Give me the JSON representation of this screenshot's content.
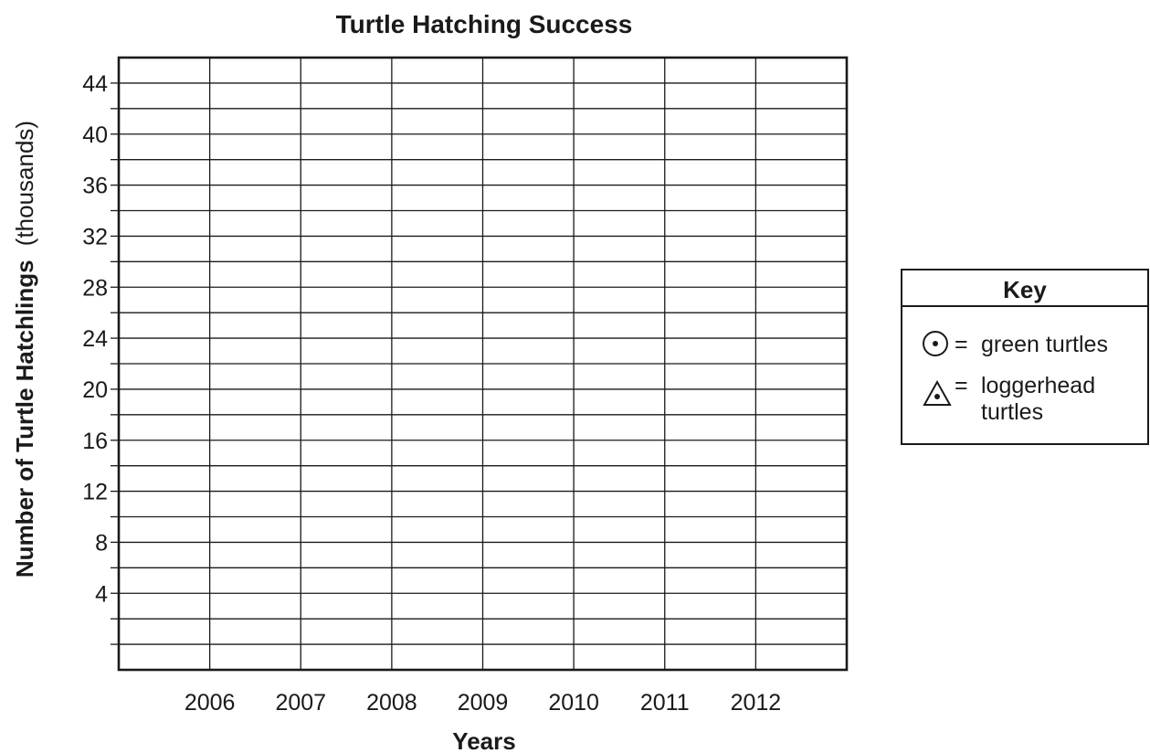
{
  "chart_data": {
    "type": "scatter",
    "title": "Turtle Hatching Success",
    "xlabel": "Years",
    "ylabel": "Number of Turtle Hatchlings",
    "ylabel_unit": "(thousands)",
    "x_categories": [
      "2006",
      "2007",
      "2008",
      "2009",
      "2010",
      "2011",
      "2012"
    ],
    "x_range": [
      2005,
      2013
    ],
    "ylim": [
      -2,
      46
    ],
    "y_grid_step": 2,
    "y_tick_values": [
      4,
      8,
      12,
      16,
      20,
      24,
      28,
      32,
      36,
      40,
      44
    ],
    "y_tick_labels": [
      "4",
      "8",
      "12",
      "16",
      "20",
      "24",
      "28",
      "32",
      "36",
      "40",
      "44"
    ],
    "grid": true,
    "legend_position": "right",
    "series": [
      {
        "name": "green turtles",
        "marker": "circle-dot",
        "values": []
      },
      {
        "name": "loggerhead turtles",
        "marker": "triangle-dot",
        "values": []
      }
    ]
  },
  "key": {
    "title": "Key",
    "entries": [
      {
        "symbol": "=",
        "label": "green turtles",
        "icon": "circle-dot-icon"
      },
      {
        "symbol": "=",
        "label_line1": "loggerhead",
        "label_line2": "turtles",
        "icon": "triangle-dot-icon"
      }
    ]
  },
  "colors": {
    "ink": "#1a1a1a",
    "background": "#ffffff"
  }
}
